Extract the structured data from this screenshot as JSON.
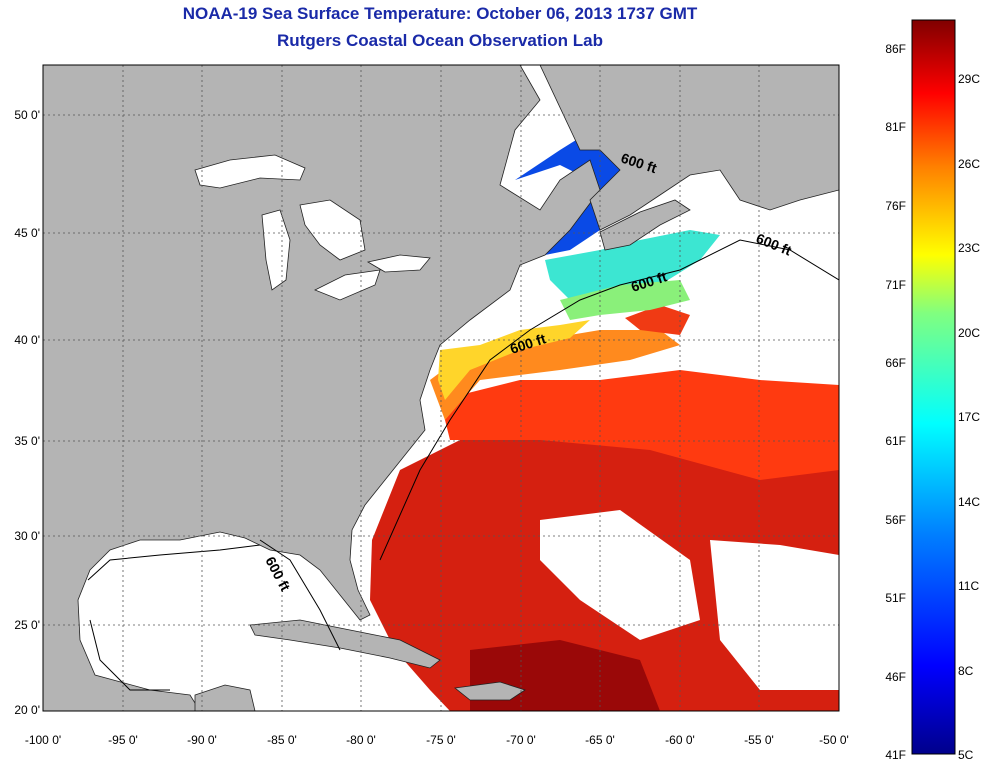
{
  "title": {
    "line1": "NOAA-19 Sea Surface Temperature:  October 06, 2013 1737 GMT",
    "line2": "Rutgers Coastal Ocean Observation Lab"
  },
  "map": {
    "lon_range": [
      -100,
      -50
    ],
    "lat_range": [
      20,
      52.5
    ],
    "x_ticks": [
      "-100 0'",
      "-95 0'",
      "-90 0'",
      "-85 0'",
      "-80 0'",
      "-75 0'",
      "-70 0'",
      "-65 0'",
      "-60 0'",
      "-55 0'",
      "-50 0'"
    ],
    "y_ticks": [
      "20 0'",
      "25 0'",
      "30 0'",
      "35 0'",
      "40 0'",
      "45 0'",
      "50 0'"
    ],
    "contour_labels": [
      "600 ft",
      "600 ft",
      "600 ft",
      "600 ft",
      "600 ft"
    ],
    "colors": {
      "land": "#b4b4b4",
      "ocean_nodata": "#ffffff",
      "grid": "#555555"
    }
  },
  "colorbar": {
    "f_labels": [
      "86F",
      "81F",
      "76F",
      "71F",
      "66F",
      "61F",
      "56F",
      "51F",
      "46F",
      "41F"
    ],
    "c_labels": [
      "29C",
      "26C",
      "23C",
      "20C",
      "17C",
      "14C",
      "11C",
      "8C",
      "5C"
    ]
  }
}
